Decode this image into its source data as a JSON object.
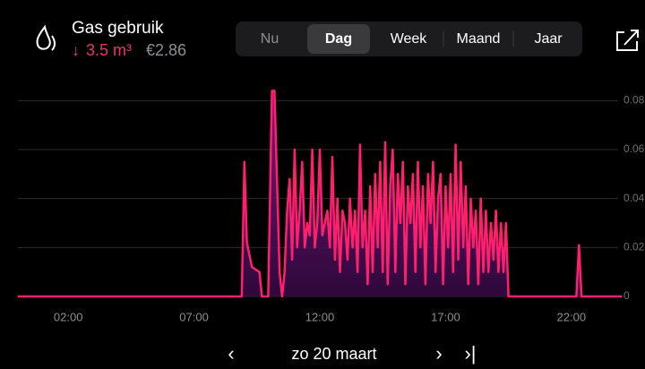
{
  "header": {
    "title": "Gas gebruik",
    "usage": "3.5 m³",
    "cost": "€2.86"
  },
  "tabs": [
    "Nu",
    "Dag",
    "Week",
    "Maand",
    "Jaar"
  ],
  "selected_tab": 1,
  "date": "zo 20 maart",
  "chart_data": {
    "type": "area",
    "color": "#ff1f6e",
    "grid": true,
    "xlim": [
      0,
      24
    ],
    "ylim": [
      0,
      0.09
    ],
    "xticks": [
      {
        "value": 2,
        "label": "02:00"
      },
      {
        "value": 7,
        "label": "07:00"
      },
      {
        "value": 12,
        "label": "12:00"
      },
      {
        "value": 17,
        "label": "17:00"
      },
      {
        "value": 22,
        "label": "22:00"
      }
    ],
    "yticks": [
      0,
      0.02,
      0.04,
      0.06,
      0.08
    ],
    "x": [
      0,
      8.9,
      9.0,
      9.1,
      9.3,
      9.6,
      9.7,
      9.95,
      10.1,
      10.2,
      10.4,
      10.5,
      10.6,
      10.7,
      10.8,
      10.9,
      11.0,
      11.1,
      11.2,
      11.3,
      11.4,
      11.5,
      11.6,
      11.7,
      11.8,
      11.9,
      12.0,
      12.1,
      12.2,
      12.3,
      12.4,
      12.5,
      12.6,
      12.7,
      12.8,
      12.9,
      13.0,
      13.1,
      13.2,
      13.3,
      13.4,
      13.5,
      13.6,
      13.7,
      13.8,
      13.9,
      14.0,
      14.1,
      14.2,
      14.3,
      14.4,
      14.5,
      14.6,
      14.7,
      14.8,
      14.9,
      15.0,
      15.1,
      15.2,
      15.3,
      15.4,
      15.5,
      15.6,
      15.7,
      15.8,
      15.9,
      16.0,
      16.1,
      16.2,
      16.3,
      16.4,
      16.5,
      16.6,
      16.7,
      16.8,
      16.9,
      17.0,
      17.1,
      17.2,
      17.3,
      17.4,
      17.5,
      17.6,
      17.7,
      17.8,
      17.9,
      18.0,
      18.1,
      18.2,
      18.3,
      18.4,
      18.5,
      18.6,
      18.7,
      18.8,
      18.9,
      19.0,
      19.1,
      19.2,
      19.3,
      19.4,
      19.5,
      22.2,
      22.3,
      22.4,
      24
    ],
    "series": [
      {
        "values": [
          0,
          0,
          0.055,
          0.022,
          0.012,
          0.01,
          0,
          0,
          0.084,
          0.084,
          0.01,
          0,
          0.01,
          0.035,
          0.048,
          0.015,
          0.06,
          0.02,
          0.035,
          0.055,
          0.02,
          0.03,
          0.025,
          0.06,
          0.02,
          0.03,
          0.06,
          0.025,
          0.03,
          0.035,
          0.02,
          0.057,
          0.015,
          0.04,
          0.01,
          0.035,
          0.03,
          0.015,
          0.04,
          0.02,
          0.035,
          0.01,
          0.062,
          0.02,
          0.035,
          0.005,
          0.045,
          0.01,
          0.05,
          0.02,
          0.055,
          0.01,
          0.063,
          0.005,
          0.045,
          0.06,
          0.01,
          0.05,
          0.03,
          0.055,
          0.005,
          0.045,
          0.03,
          0.05,
          0.01,
          0.055,
          0.02,
          0.045,
          0.005,
          0.05,
          0.03,
          0.055,
          0.01,
          0.04,
          0.05,
          0.005,
          0.045,
          0.02,
          0.05,
          0.01,
          0.062,
          0.015,
          0.055,
          0.02,
          0.045,
          0.005,
          0.04,
          0.02,
          0.035,
          0.005,
          0.04,
          0.01,
          0.035,
          0.01,
          0.03,
          0.015,
          0.035,
          0.01,
          0.03,
          0.01,
          0.03,
          0,
          0,
          0.021,
          0,
          0
        ]
      }
    ]
  }
}
